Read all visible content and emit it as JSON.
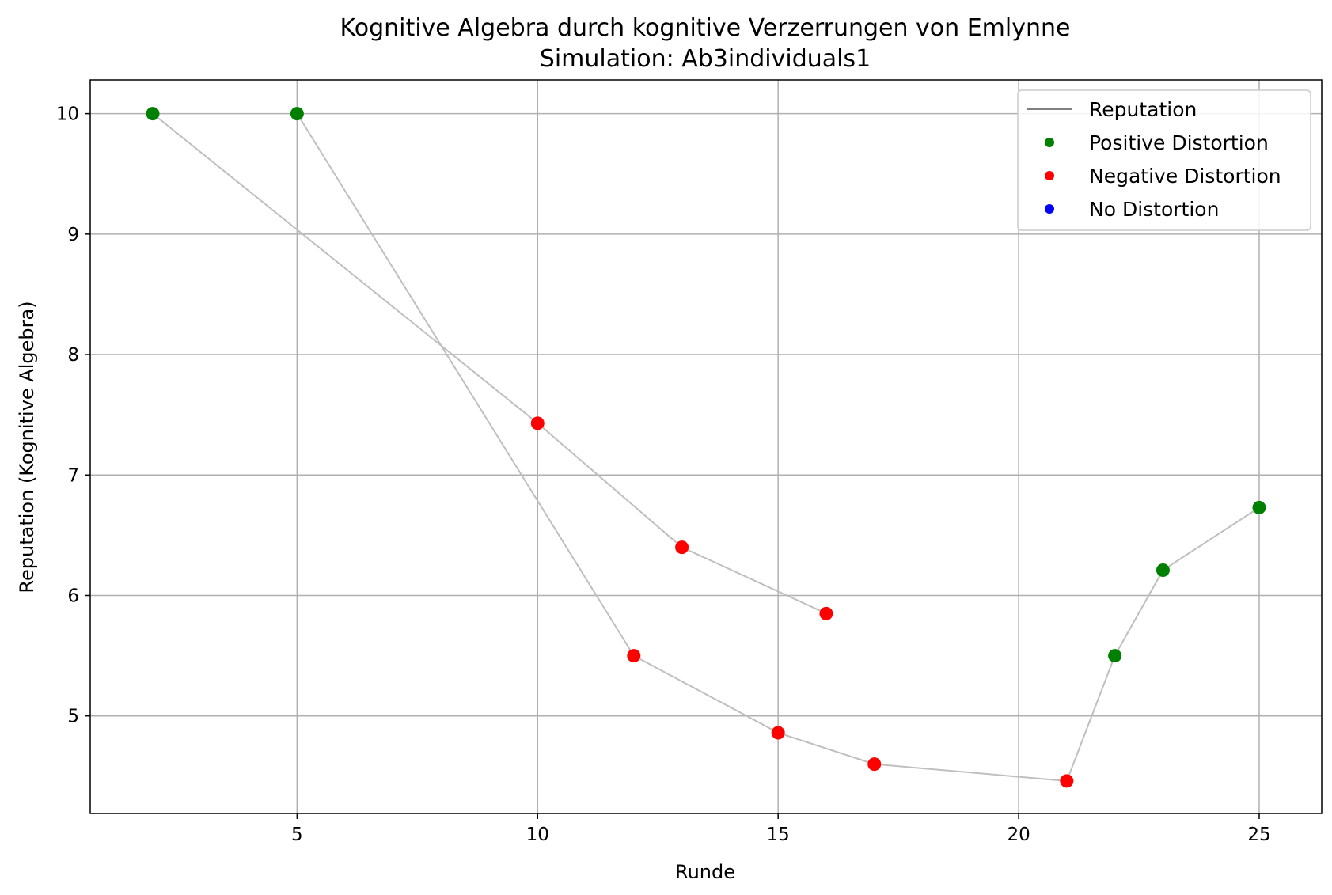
{
  "chart_data": {
    "type": "line",
    "title": "Kognitive Algebra durch kognitive Verzerrungen von Emlynne",
    "subtitle": "Simulation: Ab3individuals1",
    "xlabel": "Runde",
    "ylabel": "Reputation (Kognitive Algebra)",
    "xlim": [
      0.7,
      26.3
    ],
    "ylim": [
      4.19,
      10.28
    ],
    "xticks": [
      5,
      10,
      15,
      20,
      25
    ],
    "yticks": [
      5,
      6,
      7,
      8,
      9,
      10
    ],
    "grid": true,
    "legend_position": "top-right",
    "colors": {
      "line": "#bfbfbf",
      "legend_line": "#808080",
      "positive": "#008000",
      "negative": "#ff0000",
      "none": "#0000ff"
    },
    "legend": [
      {
        "label": "Reputation",
        "kind": "line",
        "color": "#808080"
      },
      {
        "label": "Positive Distortion",
        "kind": "marker",
        "color": "#008000"
      },
      {
        "label": "Negative Distortion",
        "kind": "marker",
        "color": "#ff0000"
      },
      {
        "label": "No Distortion",
        "kind": "marker",
        "color": "#0000ff"
      }
    ],
    "lines": [
      {
        "points": [
          [
            2,
            10.0
          ],
          [
            10,
            7.43
          ],
          [
            13,
            6.4
          ],
          [
            16,
            5.85
          ]
        ]
      },
      {
        "points": [
          [
            5,
            10.0
          ],
          [
            12,
            5.5
          ],
          [
            15,
            4.86
          ],
          [
            17,
            4.6
          ],
          [
            21,
            4.46
          ],
          [
            22,
            5.5
          ],
          [
            23,
            6.21
          ],
          [
            25,
            6.73
          ]
        ]
      }
    ],
    "points": [
      {
        "x": 2,
        "y": 10.0,
        "distortion": "positive"
      },
      {
        "x": 5,
        "y": 10.0,
        "distortion": "positive"
      },
      {
        "x": 10,
        "y": 7.43,
        "distortion": "negative"
      },
      {
        "x": 12,
        "y": 5.5,
        "distortion": "negative"
      },
      {
        "x": 13,
        "y": 6.4,
        "distortion": "negative"
      },
      {
        "x": 15,
        "y": 4.86,
        "distortion": "negative"
      },
      {
        "x": 16,
        "y": 5.85,
        "distortion": "negative"
      },
      {
        "x": 17,
        "y": 4.6,
        "distortion": "negative"
      },
      {
        "x": 21,
        "y": 4.46,
        "distortion": "negative"
      },
      {
        "x": 22,
        "y": 5.5,
        "distortion": "positive"
      },
      {
        "x": 23,
        "y": 6.21,
        "distortion": "positive"
      },
      {
        "x": 25,
        "y": 6.73,
        "distortion": "positive"
      }
    ]
  }
}
